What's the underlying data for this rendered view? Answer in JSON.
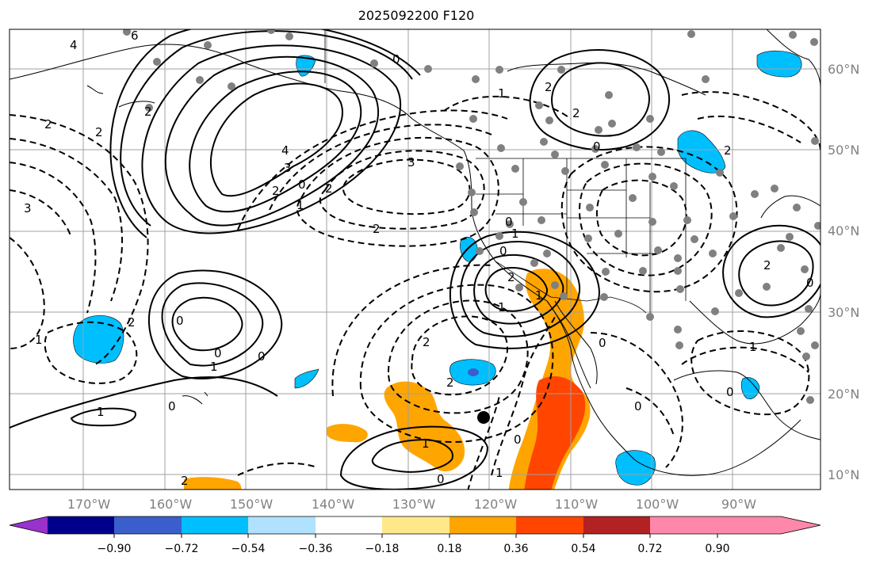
{
  "title": "2025092200 F120",
  "lon_ticks": [
    "170°W",
    "160°W",
    "150°W",
    "140°W",
    "130°W",
    "120°W",
    "110°W",
    "100°W",
    "90°W"
  ],
  "lat_ticks": [
    "60°N",
    "50°N",
    "40°N",
    "30°N",
    "20°N",
    "10°N"
  ],
  "colorbar": {
    "colors": [
      "#9932cc",
      "#00008b",
      "#3a5fcd",
      "#00bfff",
      "#b0e2ff",
      "#ffffff",
      "#ffe88a",
      "#ffa500",
      "#ff4500",
      "#b22222",
      "#ff88aa"
    ],
    "tick_labels": [
      "−0.90",
      "−0.72",
      "−0.54",
      "−0.36",
      "−0.18",
      "0.18",
      "0.36",
      "0.54",
      "0.72",
      "0.90"
    ]
  },
  "contour_labels": [
    "4",
    "6",
    "2",
    "2",
    "3",
    "4",
    "3",
    "2",
    "0",
    "1",
    "2",
    "3",
    "0",
    "2",
    "1",
    "2",
    "0",
    "2",
    "1",
    "0",
    "1",
    "2",
    "0",
    "1",
    "0",
    "2",
    "0",
    "1",
    "2",
    "1",
    "2",
    "0",
    "2",
    "2",
    "0",
    "1",
    "0",
    "1",
    "0",
    "0",
    "1",
    "2",
    "2",
    "0",
    "0",
    "1",
    "0"
  ],
  "station_marker": "black-dot"
}
